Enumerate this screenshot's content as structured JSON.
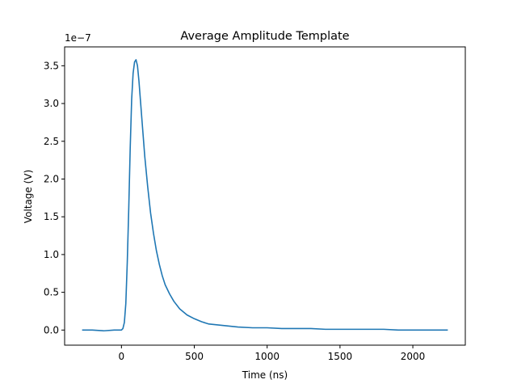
{
  "chart_data": {
    "type": "line",
    "title": "Average Amplitude Template",
    "xlabel": "Time (ns)",
    "ylabel": "Voltage (V)",
    "offset_text": "1e−7",
    "xlim": [
      -390,
      2360
    ],
    "ylim": [
      -0.2,
      3.75
    ],
    "x_ticks": [
      0,
      500,
      1000,
      1500,
      2000
    ],
    "x_tick_labels": [
      "0",
      "500",
      "1000",
      "1500",
      "2000"
    ],
    "y_ticks": [
      0.0,
      0.5,
      1.0,
      1.5,
      2.0,
      2.5,
      3.0,
      3.5
    ],
    "y_tick_labels": [
      "0.0",
      "0.5",
      "1.0",
      "1.5",
      "2.0",
      "2.5",
      "3.0",
      "3.5"
    ],
    "grid": false,
    "series": [
      {
        "color": "#1f77b4",
        "x": [
          -270,
          -200,
          -120,
          -50,
          0,
          10,
          20,
          30,
          40,
          50,
          60,
          70,
          80,
          90,
          100,
          110,
          120,
          130,
          140,
          150,
          160,
          180,
          200,
          220,
          240,
          260,
          280,
          300,
          330,
          360,
          400,
          450,
          500,
          550,
          600,
          700,
          800,
          900,
          1000,
          1100,
          1200,
          1300,
          1400,
          1500,
          1600,
          1700,
          1800,
          1900,
          2000,
          2100,
          2240
        ],
        "y": [
          0.0,
          0.0,
          -0.01,
          0.0,
          0.0,
          0.02,
          0.1,
          0.35,
          0.9,
          1.6,
          2.4,
          3.05,
          3.4,
          3.55,
          3.58,
          3.5,
          3.3,
          3.05,
          2.8,
          2.55,
          2.3,
          1.9,
          1.55,
          1.28,
          1.05,
          0.87,
          0.72,
          0.6,
          0.48,
          0.38,
          0.28,
          0.2,
          0.15,
          0.11,
          0.08,
          0.06,
          0.04,
          0.03,
          0.03,
          0.02,
          0.02,
          0.02,
          0.01,
          0.01,
          0.01,
          0.01,
          0.01,
          0.0,
          0.0,
          0.0,
          0.0
        ]
      }
    ]
  }
}
